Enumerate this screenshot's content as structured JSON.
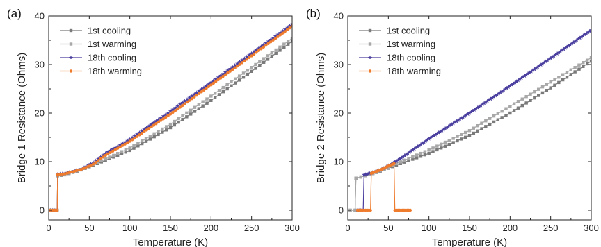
{
  "colors": {
    "c1": "#7a7a7a",
    "w1": "#a8a8a8",
    "c18": "#4a3f9f",
    "w18": "#ef7b2d"
  },
  "chart_data": [
    {
      "type": "line",
      "panel_label": "(a)",
      "xlabel": "Temperature (K)",
      "ylabel": "Bridge 1 Resistance (Ohms)",
      "xlim": [
        0,
        300
      ],
      "ylim": [
        -2,
        40
      ],
      "xticks": [
        "0",
        "50",
        "100",
        "150",
        "200",
        "250",
        "300"
      ],
      "yticks": [
        "0",
        "10",
        "20",
        "30",
        "40"
      ],
      "legend_position": "top-left",
      "series": [
        {
          "name": "1st cooling",
          "color_key": "c1",
          "marker": "square",
          "step": 5,
          "points": [
            [
              300,
              34.8
            ],
            [
              250,
              28.6
            ],
            [
              200,
              22.6
            ],
            [
              150,
              17.0
            ],
            [
              100,
              12.3
            ],
            [
              60,
              9.6
            ],
            [
              40,
              8.3
            ],
            [
              20,
              7.3
            ],
            [
              11,
              7.1
            ],
            [
              10.5,
              0
            ],
            [
              2,
              0
            ]
          ]
        },
        {
          "name": "1st warming",
          "color_key": "w1",
          "marker": "square",
          "step": 5,
          "points": [
            [
              2,
              0
            ],
            [
              10.5,
              0
            ],
            [
              11,
              7.2
            ],
            [
              20,
              7.4
            ],
            [
              40,
              8.4
            ],
            [
              60,
              9.8
            ],
            [
              100,
              12.8
            ],
            [
              150,
              17.7
            ],
            [
              200,
              23.5
            ],
            [
              250,
              29.4
            ],
            [
              300,
              35.4
            ]
          ]
        },
        {
          "name": "18th cooling",
          "color_key": "c18",
          "marker": "star",
          "step": 3,
          "points": [
            [
              300,
              38.3
            ],
            [
              250,
              32.3
            ],
            [
              200,
              26.3
            ],
            [
              150,
              20.4
            ],
            [
              100,
              14.6
            ],
            [
              70,
              11.7
            ],
            [
              55,
              9.8
            ],
            [
              40,
              8.5
            ],
            [
              20,
              7.6
            ],
            [
              11,
              7.4
            ],
            [
              10.5,
              0
            ],
            [
              2,
              0
            ]
          ]
        },
        {
          "name": "18th warming",
          "color_key": "w18",
          "marker": "circle",
          "step": 3,
          "points": [
            [
              2,
              0
            ],
            [
              10.5,
              0
            ],
            [
              11,
              7.3
            ],
            [
              20,
              7.5
            ],
            [
              40,
              8.4
            ],
            [
              55,
              9.5
            ],
            [
              70,
              11.3
            ],
            [
              100,
              14.2
            ],
            [
              150,
              19.8
            ],
            [
              200,
              25.8
            ],
            [
              250,
              31.8
            ],
            [
              300,
              37.9
            ]
          ]
        }
      ]
    },
    {
      "type": "line",
      "panel_label": "(b)",
      "xlabel": "Temperature (K)",
      "ylabel": "Bridge 2 Resistance (Ohms)",
      "xlim": [
        0,
        300
      ],
      "ylim": [
        -2,
        40
      ],
      "xticks": [
        "0",
        "50",
        "100",
        "150",
        "200",
        "250",
        "300"
      ],
      "yticks": [
        "0",
        "10",
        "20",
        "30",
        "40"
      ],
      "legend_position": "top-left",
      "series": [
        {
          "name": "1st cooling",
          "color_key": "c1",
          "marker": "square",
          "step": 5,
          "points": [
            [
              300,
              30.7
            ],
            [
              250,
              25.2
            ],
            [
              200,
              20.0
            ],
            [
              150,
              15.4
            ],
            [
              100,
              11.7
            ],
            [
              60,
              9.3
            ],
            [
              40,
              8.0
            ],
            [
              22,
              7.1
            ],
            [
              10,
              6.6
            ],
            [
              9,
              0
            ],
            [
              3,
              0
            ]
          ]
        },
        {
          "name": "1st warming",
          "color_key": "w1",
          "marker": "square",
          "step": 5,
          "points": [
            [
              3,
              0
            ],
            [
              9,
              0
            ],
            [
              10,
              6.6
            ],
            [
              22,
              7.1
            ],
            [
              40,
              8.1
            ],
            [
              60,
              9.6
            ],
            [
              100,
              12.4
            ],
            [
              150,
              16.4
            ],
            [
              200,
              21.4
            ],
            [
              250,
              26.4
            ],
            [
              300,
              31.4
            ]
          ]
        },
        {
          "name": "18th cooling",
          "color_key": "c18",
          "marker": "star",
          "step": 2,
          "points": [
            [
              300,
              37.1
            ],
            [
              250,
              31.3
            ],
            [
              200,
              25.6
            ],
            [
              150,
              20.0
            ],
            [
              100,
              14.7
            ],
            [
              60,
              10.1
            ],
            [
              40,
              8.3
            ],
            [
              25,
              7.5
            ],
            [
              20,
              7.3
            ],
            [
              19,
              0
            ],
            [
              12,
              0
            ]
          ]
        },
        {
          "name": "18th warming",
          "color_key": "w18",
          "marker": "circle",
          "step": 2,
          "points": [
            [
              12,
              0
            ],
            [
              28,
              0
            ],
            [
              29,
              7.6
            ],
            [
              40,
              8.3
            ],
            [
              50,
              9.1
            ],
            [
              57,
              9.6
            ],
            [
              58,
              0
            ],
            [
              77,
              0
            ]
          ]
        }
      ]
    }
  ]
}
